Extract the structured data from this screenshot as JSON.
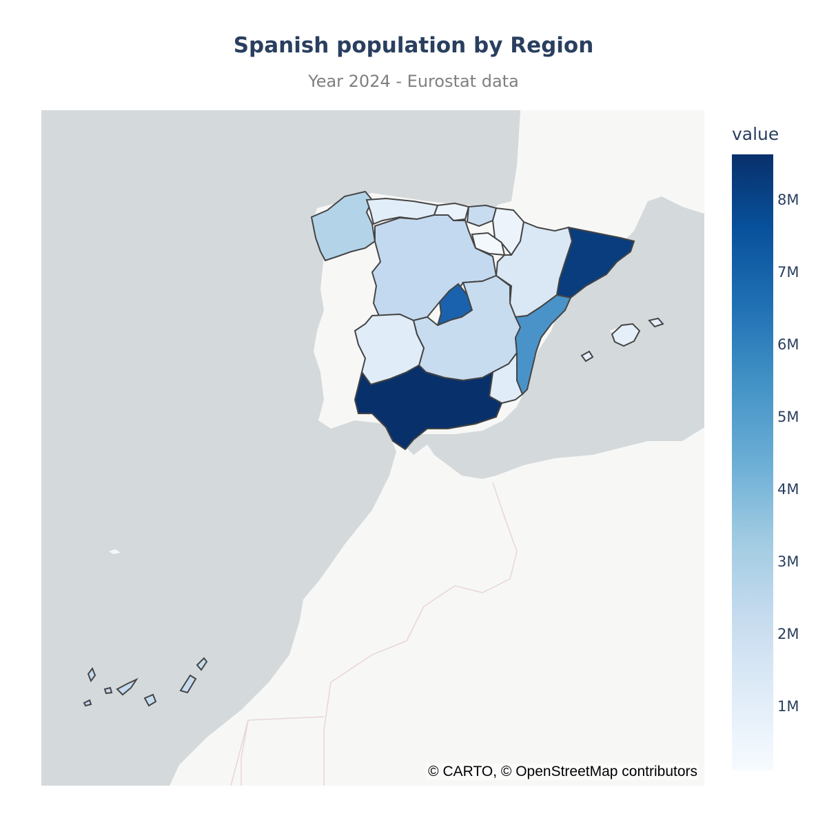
{
  "title": "Spanish population by Region",
  "subtitle": "Year 2024 - Eurostat data",
  "attribution": "© CARTO, © OpenStreetMap contributors",
  "colorbar": {
    "title": "value",
    "ticks": [
      "8M",
      "7M",
      "6M",
      "5M",
      "4M",
      "3M",
      "2M",
      "1M"
    ],
    "colorscale": [
      "#f7fbff",
      "#deebf7",
      "#c6dbef",
      "#9ecae1",
      "#6baed6",
      "#4292c6",
      "#2171b5",
      "#08519c",
      "#08306b"
    ]
  },
  "colors": {
    "sea": "#d4d9dc",
    "land": "#f7f7f6",
    "border": "#444444",
    "title": "#2a3f5f"
  },
  "regions": [
    {
      "name": "Andalucía",
      "level": 1.0
    },
    {
      "name": "Cataluña",
      "level": 0.94
    },
    {
      "name": "Comunidad de Madrid",
      "level": 0.8
    },
    {
      "name": "Comunitat Valenciana",
      "level": 0.6
    },
    {
      "name": "Galicia",
      "level": 0.3
    },
    {
      "name": "Castilla y León",
      "level": 0.26
    },
    {
      "name": "Castilla-La Mancha",
      "level": 0.24
    },
    {
      "name": "País Vasco",
      "level": 0.24
    },
    {
      "name": "Canarias",
      "level": 0.26
    },
    {
      "name": "Aragón",
      "level": 0.16
    },
    {
      "name": "Extremadura",
      "level": 0.12
    },
    {
      "name": "Región de Murcia",
      "level": 0.16
    },
    {
      "name": "Illes Balears",
      "level": 0.14
    },
    {
      "name": "Principado de Asturias",
      "level": 0.12
    },
    {
      "name": "Comunidad Foral de Navarra",
      "level": 0.08
    },
    {
      "name": "Cantabria",
      "level": 0.06
    },
    {
      "name": "La Rioja",
      "level": 0.04
    }
  ]
}
